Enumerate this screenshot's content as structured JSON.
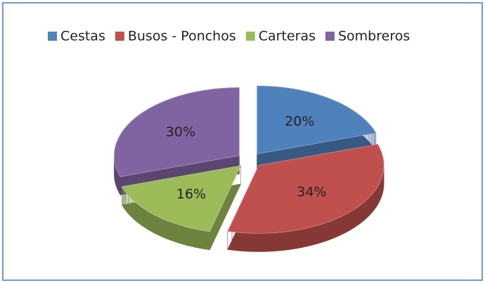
{
  "chart_data": {
    "type": "pie",
    "categories": [
      "Cestas",
      "Busos - Ponchos",
      "Carteras",
      "Sombreros"
    ],
    "values": [
      20,
      34,
      16,
      30
    ],
    "value_labels": [
      "20%",
      "34%",
      "16%",
      "30%"
    ],
    "colors": [
      "#4f81bd",
      "#c0504d",
      "#9bbb59",
      "#8064a2"
    ],
    "legend": "top"
  }
}
